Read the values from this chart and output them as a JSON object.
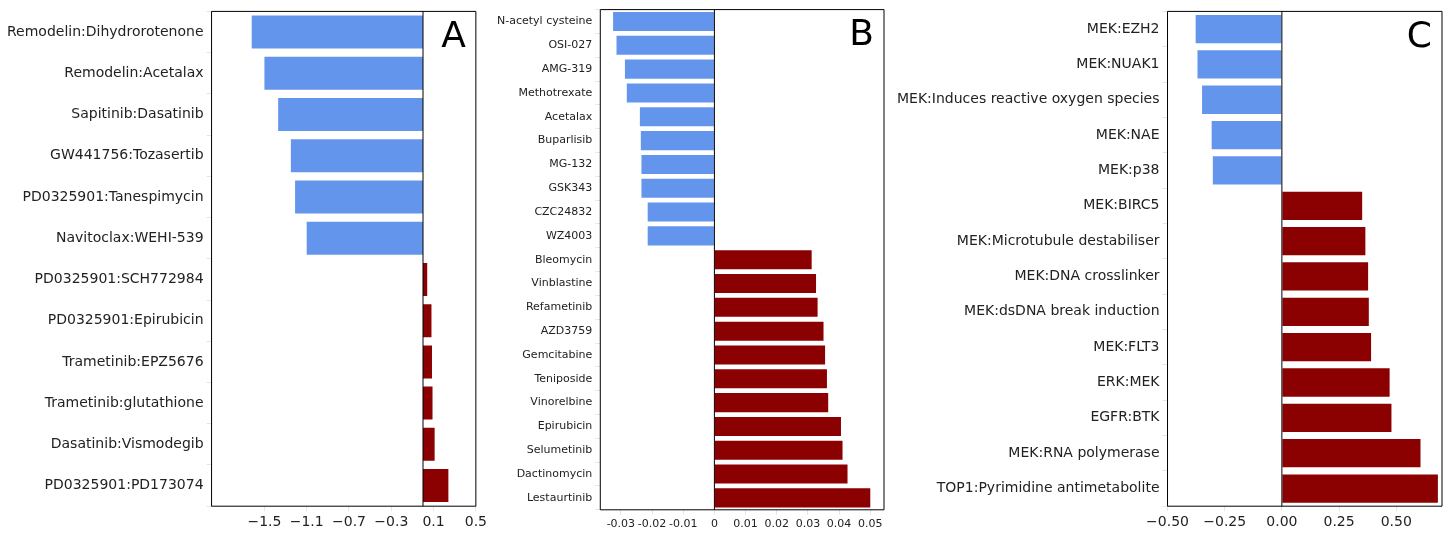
{
  "chart_data": [
    {
      "type": "bar",
      "orientation": "horizontal",
      "categories": [
        "Remodelin:Dihydrorotenone",
        "Remodelin:Acetalax",
        "Sapitinib:Dasatinib",
        "GW441756:Tozasertib",
        "PD0325901:Tanespimycin",
        "Navitoclax:WEHI-539",
        "PD0325901:SCH772984",
        "PD0325901:Epirubicin",
        "Trametinib:EPZ5676",
        "Trametinib:glutathione",
        "Dasatinib:Vismodegib",
        "PD0325901:PD173074"
      ],
      "values": [
        -1.62,
        -1.5,
        -1.37,
        -1.25,
        -1.21,
        -1.1,
        0.04,
        0.08,
        0.085,
        0.09,
        0.11,
        0.24
      ],
      "colors": [
        "#6495ed",
        "#6495ed",
        "#6495ed",
        "#6495ed",
        "#6495ed",
        "#6495ed",
        "#8b0000",
        "#8b0000",
        "#8b0000",
        "#8b0000",
        "#8b0000",
        "#8b0000"
      ],
      "xlim": [
        -2.0,
        0.5
      ],
      "xticks": [
        {
          "value": -1.5,
          "label": "−1.5"
        },
        {
          "value": -1.1,
          "label": "−1.1"
        },
        {
          "value": -0.7,
          "label": "−0.7"
        },
        {
          "value": -0.3,
          "label": "−0.3"
        },
        0.1,
        0.5
      ],
      "ref_lines": [
        {
          "axis": "x",
          "value": 0
        }
      ],
      "annotations": [
        "A"
      ],
      "grid": false,
      "legend": false
    },
    {
      "type": "bar",
      "orientation": "horizontal",
      "categories": [
        "N-acetyl cysteine",
        "OSI-027",
        "AMG-319",
        "Methotrexate",
        "Acetalax",
        "Buparlisib",
        "MG-132",
        "GSK343",
        "CZC24832",
        "WZ4003",
        "Bleomycin",
        "Vinblastine",
        "Refametinib",
        "AZD3759",
        "Gemcitabine",
        "Teniposide",
        "Vinorelbine",
        "Epirubicin",
        "Selumetinib",
        "Dactinomycin",
        "Lestaurtinib"
      ],
      "values": [
        -0.0325,
        -0.0314,
        -0.0287,
        -0.0281,
        -0.0239,
        -0.0236,
        -0.0234,
        -0.0234,
        -0.0214,
        -0.0214,
        0.0312,
        0.0326,
        0.0331,
        0.035,
        0.0355,
        0.0361,
        0.0365,
        0.0406,
        0.0411,
        0.0427,
        0.05
      ],
      "colors": [
        "#6495ed",
        "#6495ed",
        "#6495ed",
        "#6495ed",
        "#6495ed",
        "#6495ed",
        "#6495ed",
        "#6495ed",
        "#6495ed",
        "#6495ed",
        "#8b0000",
        "#8b0000",
        "#8b0000",
        "#8b0000",
        "#8b0000",
        "#8b0000",
        "#8b0000",
        "#8b0000",
        "#8b0000",
        "#8b0000",
        "#8b0000"
      ],
      "xlim": [
        -0.0366,
        0.0544
      ],
      "xticks": [
        -0.03,
        -0.02,
        -0.01,
        0,
        0.01,
        0.02,
        0.03,
        0.04,
        0.05
      ],
      "ref_lines": [
        {
          "axis": "x",
          "value": 0
        }
      ],
      "annotations": [
        "B"
      ],
      "grid": false,
      "legend": false
    },
    {
      "type": "bar",
      "orientation": "horizontal",
      "categories": [
        "MEK:EZH2",
        "MEK:NUAK1",
        "MEK:Induces reactive oxygen species",
        "MEK:NAE",
        "MEK:p38",
        "MEK:BIRC5",
        "MEK:Microtubule destabiliser",
        "MEK:DNA crosslinker",
        "MEK:dsDNA break induction",
        "MEK:FLT3",
        "ERK:MEK",
        "EGFR:BTK",
        "MEK:RNA polymerase",
        "TOP1:Pyrimidine antimetabolite"
      ],
      "values": [
        -0.377,
        -0.369,
        -0.349,
        -0.307,
        -0.302,
        0.351,
        0.365,
        0.377,
        0.38,
        0.39,
        0.471,
        0.479,
        0.606,
        0.682
      ],
      "colors": [
        "#6495ed",
        "#6495ed",
        "#6495ed",
        "#6495ed",
        "#6495ed",
        "#8b0000",
        "#8b0000",
        "#8b0000",
        "#8b0000",
        "#8b0000",
        "#8b0000",
        "#8b0000",
        "#8b0000",
        "#8b0000"
      ],
      "xlim": [
        -0.5,
        0.7
      ],
      "xticks": [
        {
          "value": -0.5,
          "label": "−0.50"
        },
        {
          "value": -0.25,
          "label": "−0.25"
        },
        {
          "value": 0,
          "label": "0.00"
        },
        {
          "value": 0.25,
          "label": "0.25"
        },
        {
          "value": 0.5,
          "label": "0.50"
        }
      ],
      "ref_lines": [
        {
          "axis": "x",
          "value": 0
        }
      ],
      "annotations": [
        "C"
      ],
      "grid": false,
      "legend": false
    }
  ]
}
